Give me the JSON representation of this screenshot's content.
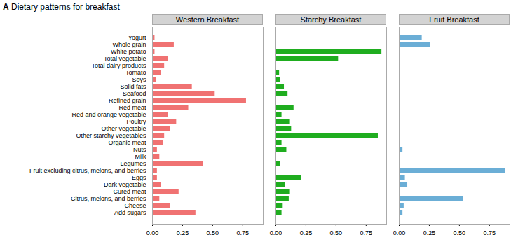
{
  "title": "A Dietary patterns for breakfast",
  "chart_data": [
    {
      "type": "bar",
      "orientation": "horizontal",
      "title": "Western Breakfast",
      "categories": [
        "Yogurt",
        "Whole grain",
        "White potato",
        "Total vegetable",
        "Total dairy products",
        "Tomato",
        "Soys",
        "Solid fats",
        "Seafood",
        "Refined grain",
        "Red meat",
        "Red and orange vegetable",
        "Poultry",
        "Other vegetable",
        "Other starchy vegetables",
        "Organic meat",
        "Nuts",
        "Milk",
        "Legumes",
        "Fruit excluding citrus, melons, and berries",
        "Eggs",
        "Dark vegetable",
        "Cured meat",
        "Citrus, melons, and berries",
        "Cheese",
        "Add sugars"
      ],
      "values": [
        0.02,
        0.18,
        0.02,
        0.13,
        0.1,
        0.07,
        0.03,
        0.33,
        0.52,
        0.78,
        0.3,
        0.13,
        0.2,
        0.15,
        0.1,
        0.09,
        0.04,
        0.06,
        0.42,
        0.04,
        0.04,
        0.07,
        0.22,
        0.06,
        0.15,
        0.36
      ],
      "color": "#f07272",
      "xlim": [
        0.0,
        0.92
      ],
      "xticks": [
        {
          "value": 0,
          "label": "0.00"
        },
        0.25,
        {
          "value": 0.5,
          "label": "0.50"
        },
        0.75
      ]
    },
    {
      "type": "bar",
      "orientation": "horizontal",
      "title": "Starchy Breakfast",
      "categories": [
        "Yogurt",
        "Whole grain",
        "White potato",
        "Total vegetable",
        "Total dairy products",
        "Tomato",
        "Soys",
        "Solid fats",
        "Seafood",
        "Refined grain",
        "Red meat",
        "Red and orange vegetable",
        "Poultry",
        "Other vegetable",
        "Other starchy vegetables",
        "Organic meat",
        "Nuts",
        "Milk",
        "Legumes",
        "Fruit excluding citrus, melons, and berries",
        "Eggs",
        "Dark vegetable",
        "Cured meat",
        "Citrus, melons, and berries",
        "Cheese",
        "Add sugars"
      ],
      "values": [
        0.0,
        0.0,
        0.88,
        0.52,
        0.0,
        0.03,
        0.04,
        0.07,
        0.1,
        0.0,
        0.15,
        0.05,
        0.12,
        0.13,
        0.85,
        0.05,
        0.09,
        0.0,
        0.04,
        0.0,
        0.21,
        0.08,
        0.12,
        0.11,
        0.06,
        0.05
      ],
      "color": "#1fad1f",
      "xlim": [
        0.0,
        0.92
      ],
      "xticks": [
        {
          "value": 0,
          "label": "0.00"
        },
        0.25,
        {
          "value": 0.5,
          "label": "0.50"
        },
        0.75
      ],
      "tick_labels": "x"
    },
    {
      "type": "bar",
      "orientation": "horizontal",
      "title": "Fruit Breakfast",
      "categories": [
        "Yogurt",
        "Whole grain",
        "White potato",
        "Total vegetable",
        "Total dairy products",
        "Tomato",
        "Soys",
        "Solid fats",
        "Seafood",
        "Refined grain",
        "Red meat",
        "Red and orange vegetable",
        "Poultry",
        "Other vegetable",
        "Other starchy vegetables",
        "Organic meat",
        "Nuts",
        "Milk",
        "Legumes",
        "Fruit excluding citrus, melons, and berries",
        "Eggs",
        "Dark vegetable",
        "Cured meat",
        "Citrus, melons, and berries",
        "Cheese",
        "Add sugars"
      ],
      "values": [
        0.19,
        0.26,
        0.0,
        0.0,
        0.0,
        0.0,
        0.0,
        0.0,
        0.0,
        0.0,
        0.0,
        0.0,
        0.0,
        0.0,
        0.0,
        0.0,
        0.03,
        0.0,
        0.0,
        0.88,
        0.05,
        0.07,
        0.0,
        0.53,
        0.04,
        0.03
      ],
      "color": "#6baed6",
      "xlim": [
        0.0,
        0.92
      ],
      "xticks": [
        {
          "value": 0,
          "label": "0.00"
        },
        0.25,
        {
          "value": 0.5,
          "label": "0.50"
        },
        0.75
      ],
      "tick_labels": "x"
    }
  ]
}
